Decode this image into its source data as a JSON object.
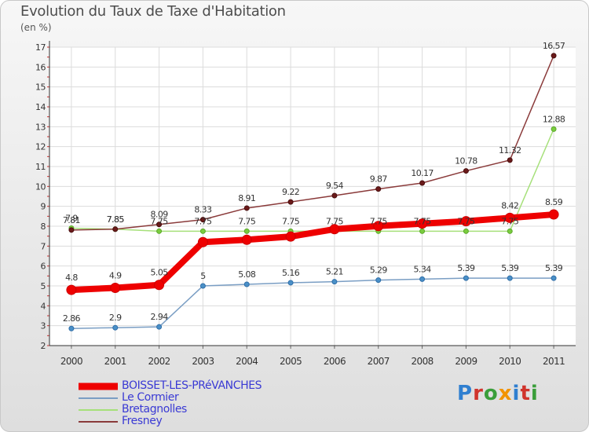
{
  "header": {
    "title": "Evolution du Taux de Taxe d'Habitation",
    "subtitle": "(en %)"
  },
  "logo": {
    "text": "Proxiti",
    "colors": [
      "#2f7fd0",
      "#d0342c",
      "#3a9e3a",
      "#f29400",
      "#2f7fd0",
      "#d0342c",
      "#3a9e3a"
    ]
  },
  "chart_data": {
    "type": "line",
    "title": "Evolution du Taux de Taxe d'Habitation",
    "subtitle": "(en %)",
    "xlabel": "",
    "ylabel": "",
    "x": [
      "2000",
      "2001",
      "2002",
      "2003",
      "2004",
      "2005",
      "2006",
      "2007",
      "2008",
      "2009",
      "2010",
      "2011"
    ],
    "ylim": [
      2,
      17
    ],
    "yticks": [
      2,
      3,
      4,
      5,
      6,
      7,
      8,
      9,
      10,
      11,
      12,
      13,
      14,
      15,
      16,
      17
    ],
    "grid": true,
    "legend_position": "bottom-left",
    "series": [
      {
        "name": "BOISSET-LES-PRéVANCHES",
        "color": "#ee0000",
        "width": 8,
        "marker_fill": "#ee0000",
        "marker_stroke": "#cc0000",
        "marker_r": 6,
        "values": [
          4.8,
          4.9,
          5.05,
          7.2,
          7.32,
          7.48,
          7.85,
          8.01,
          8.13,
          8.25,
          8.42,
          8.59
        ],
        "labels": [
          "4.8",
          "4.9",
          "5.05",
          "7.2",
          "7.32",
          "7.48",
          "7.85",
          "8.01",
          "8.13",
          "8.25",
          "8.42",
          "8.59"
        ],
        "show_labels": [
          true,
          true,
          true,
          false,
          false,
          false,
          false,
          false,
          false,
          false,
          true,
          true
        ]
      },
      {
        "name": "Le Cormier",
        "color": "#7a9ec4",
        "width": 1.5,
        "marker_fill": "#4a90c8",
        "marker_stroke": "#2f6ea8",
        "marker_r": 3,
        "values": [
          2.86,
          2.9,
          2.94,
          5,
          5.08,
          5.16,
          5.21,
          5.29,
          5.34,
          5.39,
          5.39,
          5.39
        ],
        "labels": [
          "2.86",
          "2.9",
          "2.94",
          "5",
          "5.08",
          "5.16",
          "5.21",
          "5.29",
          "5.34",
          "5.39",
          "5.39",
          "5.39"
        ],
        "show_labels": [
          true,
          true,
          true,
          true,
          true,
          true,
          true,
          true,
          true,
          true,
          true,
          true
        ]
      },
      {
        "name": "Bretagnolles",
        "color": "#a6e07a",
        "width": 1.5,
        "marker_fill": "#7acc3e",
        "marker_stroke": "#5aa82a",
        "marker_r": 3,
        "values": [
          7.9,
          7.85,
          7.75,
          7.75,
          7.75,
          7.75,
          7.75,
          7.75,
          7.75,
          7.75,
          7.75,
          12.88
        ],
        "labels": [
          "7.9",
          "7.85",
          "7.75",
          "7.75",
          "7.75",
          "7.75",
          "7.75",
          "7.75",
          "7.75",
          "7.75",
          "7.75",
          "12.88"
        ],
        "show_labels": [
          true,
          true,
          true,
          true,
          true,
          true,
          true,
          true,
          true,
          true,
          true,
          true
        ]
      },
      {
        "name": "Fresney",
        "color": "#8a3a3a",
        "width": 1.5,
        "marker_fill": "#6b1a1a",
        "marker_stroke": "#4a0e0e",
        "marker_r": 3,
        "values": [
          7.81,
          7.85,
          8.09,
          8.33,
          8.91,
          9.22,
          9.54,
          9.87,
          10.17,
          10.78,
          11.32,
          16.57
        ],
        "labels": [
          "7.81",
          "7.85",
          "8.09",
          "8.33",
          "8.91",
          "9.22",
          "9.54",
          "9.87",
          "10.17",
          "10.78",
          "11.32",
          "16.57"
        ],
        "show_labels": [
          true,
          true,
          true,
          true,
          true,
          true,
          true,
          true,
          true,
          true,
          true,
          true
        ]
      }
    ]
  }
}
